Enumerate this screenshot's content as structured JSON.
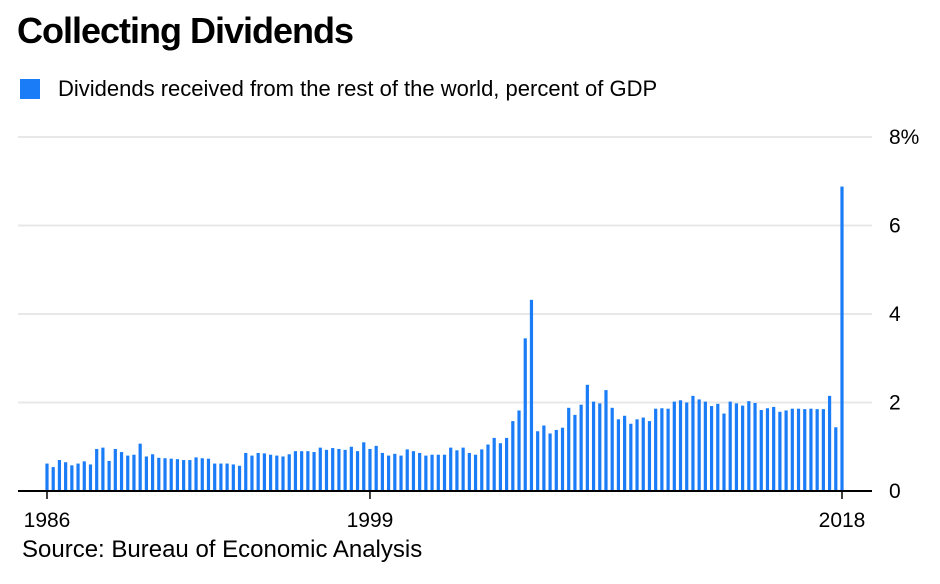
{
  "title": "Collecting Dividends",
  "source": "Source: Bureau of Economic Analysis",
  "colors": {
    "bar": "#1a7cf7",
    "grid": "#e8e8e8",
    "axis": "#000000"
  },
  "chart_data": {
    "type": "bar",
    "title": "Collecting Dividends",
    "series": [
      {
        "name": "Dividends received from the rest of the world, percent of GDP",
        "x_start": "1986 Q1",
        "frequency": "quarterly",
        "values": [
          0.62,
          0.54,
          0.7,
          0.65,
          0.58,
          0.62,
          0.67,
          0.6,
          0.95,
          0.98,
          0.68,
          0.95,
          0.88,
          0.8,
          0.82,
          1.07,
          0.78,
          0.83,
          0.75,
          0.74,
          0.73,
          0.72,
          0.7,
          0.7,
          0.76,
          0.74,
          0.73,
          0.62,
          0.62,
          0.62,
          0.6,
          0.57,
          0.86,
          0.8,
          0.86,
          0.85,
          0.82,
          0.8,
          0.78,
          0.83,
          0.9,
          0.9,
          0.9,
          0.88,
          0.98,
          0.93,
          0.97,
          0.95,
          0.93,
          1.0,
          0.9,
          1.1,
          0.95,
          1.02,
          0.86,
          0.8,
          0.84,
          0.8,
          0.94,
          0.9,
          0.86,
          0.8,
          0.82,
          0.82,
          0.82,
          0.98,
          0.92,
          0.98,
          0.86,
          0.82,
          0.94,
          1.05,
          1.2,
          1.08,
          1.2,
          1.58,
          1.82,
          3.45,
          4.32,
          1.35,
          1.48,
          1.3,
          1.38,
          1.43,
          1.88,
          1.72,
          1.95,
          2.4,
          2.02,
          1.98,
          2.28,
          1.88,
          1.62,
          1.7,
          1.52,
          1.62,
          1.66,
          1.58,
          1.86,
          1.87,
          1.86,
          2.02,
          2.05,
          2.0,
          2.15,
          2.07,
          2.02,
          1.92,
          1.97,
          1.75,
          2.02,
          1.98,
          1.93,
          2.03,
          1.99,
          1.83,
          1.87,
          1.9,
          1.79,
          1.82,
          1.86,
          1.86,
          1.85,
          1.86,
          1.85,
          1.85,
          2.15,
          1.44,
          6.88
        ]
      }
    ],
    "x_ticks": [
      "1986",
      "1999",
      "2018"
    ],
    "y_ticks": [
      "0",
      "2",
      "4",
      "6",
      "8%"
    ],
    "ylim": [
      0,
      8
    ],
    "grid": true,
    "y_axis_side": "right",
    "legend_position": "top-left"
  }
}
